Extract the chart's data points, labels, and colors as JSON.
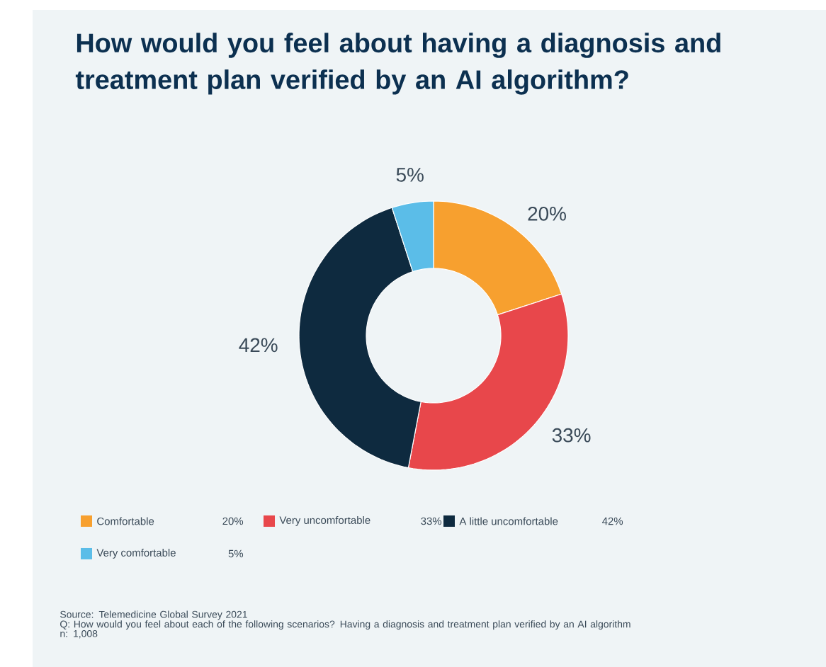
{
  "chart_data": {
    "type": "donut",
    "title": "How would you feel about having a diagnosis and treatment plan verified by an AI algorithm?",
    "categories": [
      "Comfortable",
      "Very uncomfortable",
      "A little uncomfortable",
      "Very comfortable"
    ],
    "values": [
      20,
      33,
      42,
      5
    ],
    "value_labels": [
      "20%",
      "33%",
      "42%",
      "5%"
    ],
    "colors": [
      "#f7a02f",
      "#e8474b",
      "#0e2a3f",
      "#5bbde8"
    ],
    "legend": "bottom",
    "annotations": [
      "Source: Telemedicine Global Survey 2021",
      "Q: How would you feel about each of the following scenarios?  Having a diagnosis and treatment plan verified by an AI algorithm",
      "n: 1,008"
    ]
  }
}
